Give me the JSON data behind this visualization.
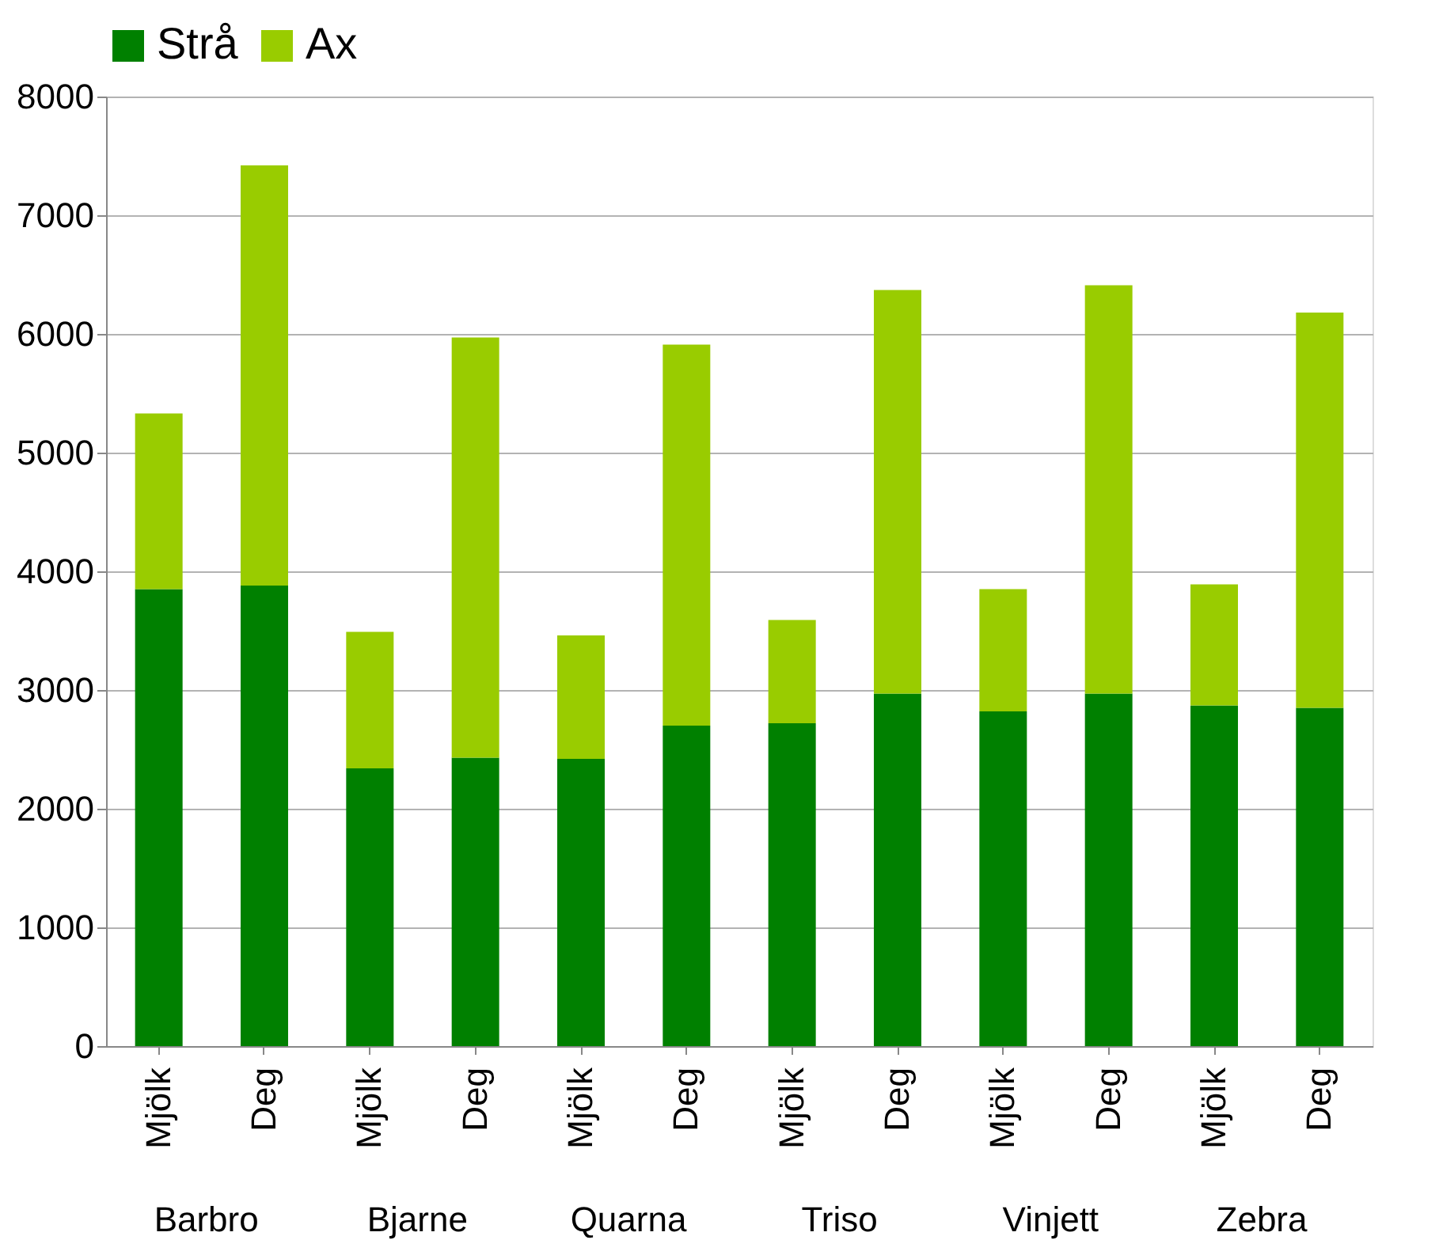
{
  "chart_data": {
    "type": "bar",
    "stacked": true,
    "categories": [
      "Mjölk",
      "Deg",
      "Mjölk",
      "Deg",
      "Mjölk",
      "Deg",
      "Mjölk",
      "Deg",
      "Mjölk",
      "Deg",
      "Mjölk",
      "Deg"
    ],
    "annotations": [
      "Barbro",
      "Bjarne",
      "Quarna",
      "Triso",
      "Vinjett",
      "Zebra"
    ],
    "series": [
      {
        "name": "Strå",
        "color": "#008000",
        "values": [
          3850,
          3880,
          2340,
          2430,
          2420,
          2700,
          2720,
          2970,
          2820,
          2970,
          2870,
          2850
        ]
      },
      {
        "name": "Ax",
        "color": "#99cc00",
        "values": [
          1480,
          3540,
          1150,
          3540,
          1040,
          3210,
          870,
          3400,
          1030,
          3440,
          1020,
          3330
        ]
      }
    ],
    "ylim": [
      0,
      8000
    ],
    "yticks": [
      0,
      1000,
      2000,
      3000,
      4000,
      5000,
      6000,
      7000,
      8000
    ],
    "grid": "y",
    "legend": "top"
  }
}
